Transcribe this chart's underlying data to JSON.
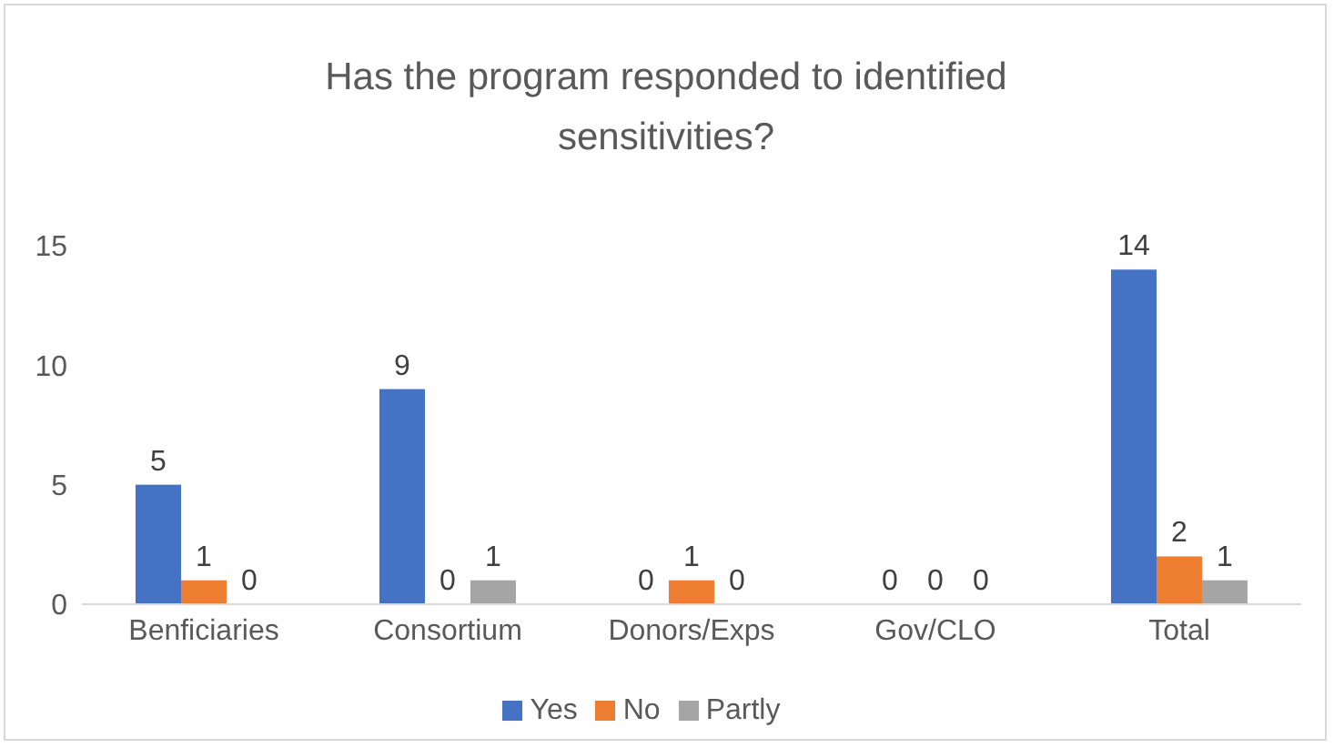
{
  "chart_data": {
    "type": "bar",
    "title": "Has the program responded to identified sensitivities?",
    "categories": [
      "Benficiaries",
      "Consortium",
      "Donors/Exps",
      "Gov/CLO",
      "Total"
    ],
    "series": [
      {
        "name": "Yes",
        "color": "#4472c4",
        "values": [
          5,
          9,
          0,
          0,
          14
        ]
      },
      {
        "name": "No",
        "color": "#ed7d31",
        "values": [
          1,
          0,
          1,
          0,
          2
        ]
      },
      {
        "name": "Partly",
        "color": "#a5a5a5",
        "values": [
          0,
          1,
          0,
          0,
          1
        ]
      }
    ],
    "ylim": [
      0,
      15
    ],
    "yticks": [
      0,
      5,
      10,
      15
    ],
    "grid": false,
    "legend": "bottom",
    "data_labels": true
  }
}
